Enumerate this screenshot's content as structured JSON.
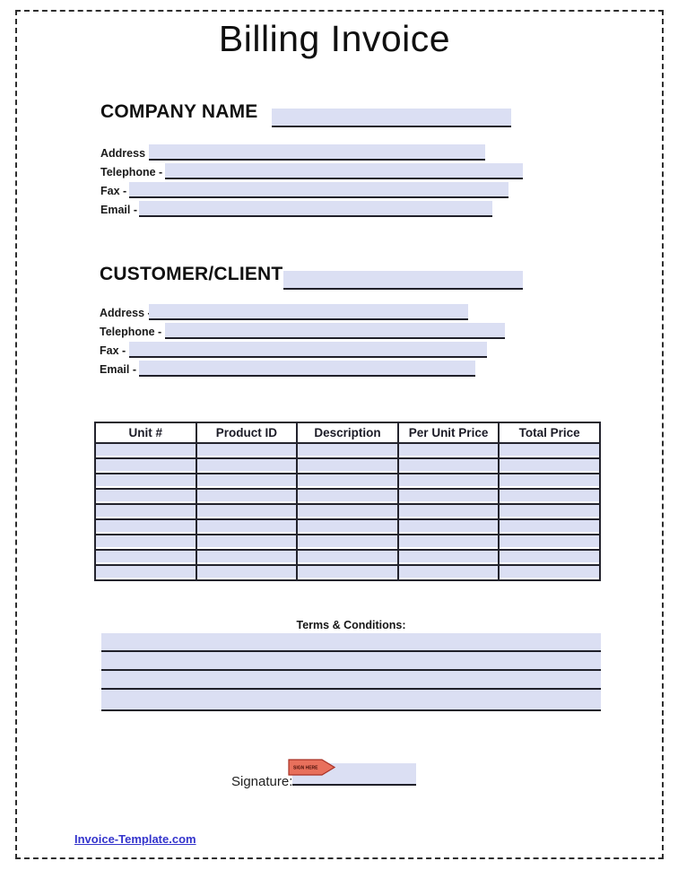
{
  "page": {
    "title": "Billing Invoice",
    "footer_link": "Invoice-Template.com"
  },
  "company": {
    "heading": "COMPANY NAME",
    "fields": [
      {
        "label": "Address -",
        "value": ""
      },
      {
        "label": "Telephone -",
        "value": ""
      },
      {
        "label": "Fax -",
        "value": ""
      },
      {
        "label": "Email -",
        "value": ""
      }
    ],
    "name_value": ""
  },
  "customer": {
    "heading": "CUSTOMER/CLIENT",
    "fields": [
      {
        "label": "Address -",
        "value": ""
      },
      {
        "label": "Telephone -",
        "value": ""
      },
      {
        "label": "Fax -",
        "value": ""
      },
      {
        "label": "Email -",
        "value": ""
      }
    ],
    "name_value": ""
  },
  "items_table": {
    "columns": [
      "Unit #",
      "Product ID",
      "Description",
      "Per Unit Price",
      "Total Price"
    ],
    "row_count": 9,
    "rows": [
      [
        "",
        "",
        "",
        "",
        ""
      ],
      [
        "",
        "",
        "",
        "",
        ""
      ],
      [
        "",
        "",
        "",
        "",
        ""
      ],
      [
        "",
        "",
        "",
        "",
        ""
      ],
      [
        "",
        "",
        "",
        "",
        ""
      ],
      [
        "",
        "",
        "",
        "",
        ""
      ],
      [
        "",
        "",
        "",
        "",
        ""
      ],
      [
        "",
        "",
        "",
        "",
        ""
      ],
      [
        "",
        "",
        "",
        "",
        ""
      ]
    ]
  },
  "terms": {
    "heading": "Terms & Conditions:",
    "line_count": 4,
    "text": ""
  },
  "signature": {
    "label": "Signature:",
    "tag_text": "SIGN HERE",
    "value": ""
  },
  "colors": {
    "field_fill": "#dbdff3",
    "line": "#20202a",
    "table_border": "#23232d",
    "link": "#3333cc",
    "tag_fill": "#e8705c",
    "tag_border": "#a93226"
  }
}
